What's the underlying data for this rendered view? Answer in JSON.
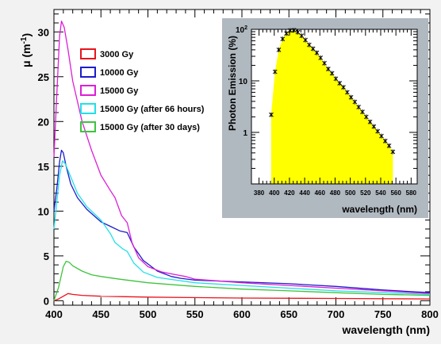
{
  "chart_data": [
    {
      "type": "line",
      "title": "",
      "xlabel": "wavelength (nm)",
      "ylabel_main": "μ (m",
      "ylabel_sup": "-1",
      "ylabel_close": ")",
      "xlim": [
        400,
        800
      ],
      "ylim": [
        -0.5,
        32.5
      ],
      "xticks": [
        "400",
        "450",
        "500",
        "550",
        "600",
        "650",
        "700",
        "750",
        "800"
      ],
      "yticks": [
        "0",
        "5",
        "10",
        "15",
        "20",
        "25",
        "30"
      ],
      "legend_position": "top-left",
      "series": [
        {
          "name": "3000 Gy",
          "color": "#e8141c",
          "x": [
            400,
            405,
            410,
            415,
            420,
            430,
            450,
            500,
            600,
            700,
            800
          ],
          "y": [
            0,
            0.2,
            0.5,
            0.8,
            0.7,
            0.6,
            0.5,
            0.4,
            0.3,
            0.25,
            0.2
          ]
        },
        {
          "name": "10000 Gy",
          "color": "#1c1ccc",
          "x": [
            400,
            403,
            406,
            408,
            410,
            413,
            418,
            425,
            435,
            450,
            460,
            470,
            478,
            485,
            495,
            510,
            525,
            535,
            550,
            600,
            650,
            700,
            750,
            800
          ],
          "y": [
            10,
            12.5,
            15.5,
            16.8,
            16.5,
            15,
            13,
            11.5,
            10.2,
            8.8,
            8.3,
            7.8,
            7.6,
            6,
            4.5,
            3.3,
            2.7,
            2.5,
            2.3,
            2.1,
            1.9,
            1.6,
            1.2,
            0.9
          ]
        },
        {
          "name": "15000 Gy",
          "color": "#dd1fd6",
          "x": [
            400,
            403,
            406,
            408,
            411,
            415,
            420,
            430,
            440,
            450,
            460,
            465,
            472,
            478,
            483,
            490,
            500,
            515,
            530,
            540,
            550,
            600,
            650,
            700,
            750,
            800
          ],
          "y": [
            16,
            23,
            29.5,
            31.2,
            30.5,
            28,
            24.5,
            20,
            16.8,
            14,
            12.3,
            11.5,
            9.5,
            8.7,
            6.5,
            4.8,
            3.8,
            3.2,
            2.9,
            2.7,
            2.4,
            2,
            1.7,
            1.4,
            1.1,
            0.8
          ]
        },
        {
          "name": "15000 Gy (after 66 hours)",
          "color": "#22e0e8",
          "x": [
            400,
            403,
            406,
            409,
            412,
            418,
            425,
            435,
            450,
            460,
            465,
            473,
            478,
            485,
            495,
            510,
            530,
            550,
            600,
            650,
            700,
            750,
            800
          ],
          "y": [
            8,
            11,
            14,
            15.6,
            15.3,
            13.8,
            12,
            10.5,
            9,
            7.5,
            6.5,
            5.8,
            5.5,
            4.2,
            3.2,
            2.6,
            2.3,
            2,
            1.7,
            1.4,
            1.1,
            0.9,
            0.7
          ]
        },
        {
          "name": "15000 Gy (after 30 days)",
          "color": "#3ec43e",
          "x": [
            400,
            405,
            410,
            413,
            416,
            420,
            430,
            440,
            450,
            470,
            500,
            550,
            600,
            650,
            700,
            750,
            800
          ],
          "y": [
            0,
            1.5,
            3.8,
            4.4,
            4.3,
            3.9,
            3.3,
            2.9,
            2.7,
            2.4,
            2,
            1.6,
            1.3,
            1.1,
            0.9,
            0.7,
            0.6
          ]
        }
      ]
    },
    {
      "type": "area",
      "title": "",
      "xlabel": "wavelength (nm)",
      "ylabel": "Photon Emission (%)",
      "xlim": [
        370,
        588
      ],
      "ylim_log": [
        0.1,
        100
      ],
      "log_y": true,
      "xticks": [
        "380",
        "400",
        "420",
        "440",
        "460",
        "480",
        "500",
        "520",
        "540",
        "560",
        "580"
      ],
      "ytick_base": "10",
      "ytick_exp_top": "2",
      "yticks": [
        "10",
        "1"
      ],
      "fill_color": "#ffff00",
      "points": {
        "x": [
          396,
          401,
          406,
          411,
          416,
          421,
          426,
          431,
          436,
          441,
          446,
          451,
          456,
          461,
          466,
          471,
          476,
          481,
          486,
          491,
          496,
          501,
          506,
          511,
          516,
          521,
          526,
          531,
          536,
          541,
          546,
          551,
          556
        ],
        "y": [
          2.2,
          15,
          40,
          65,
          83,
          95,
          96,
          88,
          75,
          62,
          50,
          42,
          35,
          28,
          22,
          17,
          14,
          11,
          9,
          7.5,
          6,
          4.8,
          3.9,
          3.1,
          2.5,
          2,
          1.6,
          1.3,
          1.05,
          0.85,
          0.68,
          0.55,
          0.42
        ]
      }
    }
  ]
}
